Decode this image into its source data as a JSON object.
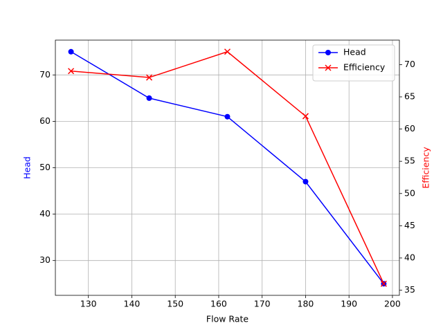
{
  "chart_data": {
    "type": "line",
    "xlabel": "Flow Rate",
    "ylabel": "Head",
    "y2label": "Efficiency",
    "x": [
      126,
      144,
      162,
      180,
      198
    ],
    "series": [
      {
        "name": "Head",
        "color": "#0000ff",
        "marker": "o",
        "values": [
          75,
          65,
          61,
          47,
          25
        ]
      },
      {
        "name": "Efficiency",
        "color": "#ff0000",
        "marker": "x",
        "axis": "y2",
        "values": [
          69,
          68,
          72,
          62,
          36
        ]
      }
    ],
    "xlim": [
      122.4,
      201.6
    ],
    "xticks": [
      130,
      140,
      150,
      160,
      170,
      180,
      190,
      200
    ],
    "ylim": [
      22.5,
      77.5
    ],
    "yticks": [
      30,
      40,
      50,
      60,
      70
    ],
    "y2lim": [
      34.2,
      73.8
    ],
    "y2ticks": [
      35,
      40,
      45,
      50,
      55,
      60,
      65,
      70
    ],
    "grid": true,
    "legend": "upper right"
  }
}
